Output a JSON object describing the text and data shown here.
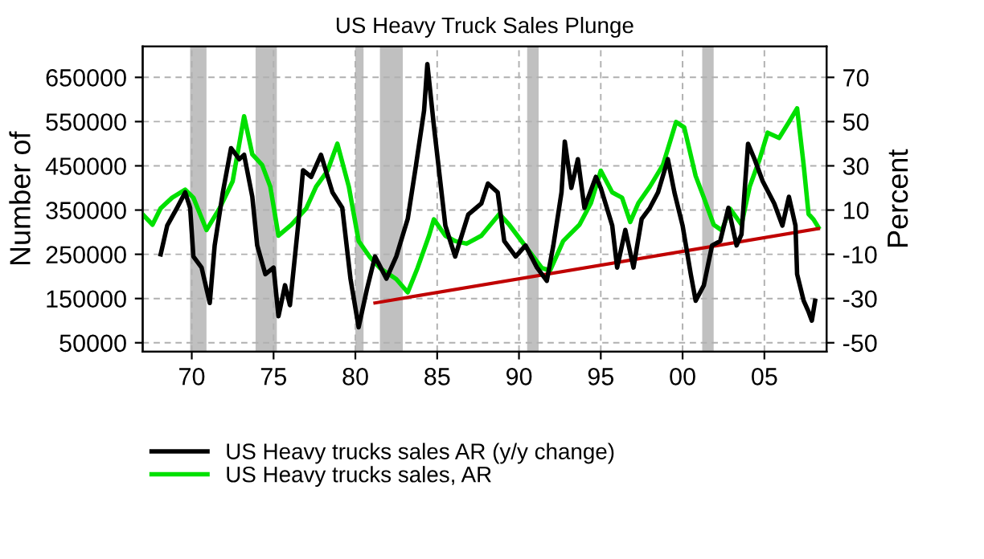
{
  "chart_data": {
    "type": "line",
    "title": "US Heavy Truck Sales Plunge",
    "ylabel": "Number of",
    "y2label": "Percent",
    "xlim": [
      1967,
      2008.8
    ],
    "xticks": [
      {
        "value": 1970,
        "label": "70"
      },
      {
        "value": 1975,
        "label": "75"
      },
      {
        "value": 1980,
        "label": "80"
      },
      {
        "value": 1985,
        "label": "85"
      },
      {
        "value": 1990,
        "label": "90"
      },
      {
        "value": 1995,
        "label": "95"
      },
      {
        "value": 2000,
        "label": "00"
      },
      {
        "value": 2005,
        "label": "05"
      }
    ],
    "ylim": [
      30000,
      720000
    ],
    "yticks": [
      50000,
      150000,
      250000,
      350000,
      450000,
      550000,
      650000
    ],
    "y2lim": [
      -54,
      84
    ],
    "y2ticks": [
      -50,
      -30,
      -10,
      10,
      30,
      50,
      70
    ],
    "grid": true,
    "legend": "bottom left",
    "bands": [
      {
        "axis": "x",
        "from": 1969.9,
        "to": 1970.9,
        "color": "#c0c0c0"
      },
      {
        "axis": "x",
        "from": 1973.9,
        "to": 1975.2,
        "color": "#c0c0c0"
      },
      {
        "axis": "x",
        "from": 1980.0,
        "to": 1980.5,
        "color": "#c0c0c0"
      },
      {
        "axis": "x",
        "from": 1981.5,
        "to": 1982.9,
        "color": "#c0c0c0"
      },
      {
        "axis": "x",
        "from": 1990.5,
        "to": 1991.2,
        "color": "#c0c0c0"
      },
      {
        "axis": "x",
        "from": 2001.2,
        "to": 2001.9,
        "color": "#c0c0c0"
      }
    ],
    "series": [
      {
        "name": "US Heavy trucks sales AR (y/y change)",
        "color": "#000000",
        "axis": "y2",
        "x": [
          1968.1,
          1968.5,
          1969.1,
          1969.6,
          1969.9,
          1970.1,
          1970.6,
          1971.1,
          1971.4,
          1971.9,
          1972.4,
          1972.9,
          1973.2,
          1973.7,
          1974.0,
          1974.5,
          1975.0,
          1975.3,
          1975.7,
          1976.0,
          1976.5,
          1976.8,
          1977.3,
          1977.9,
          1978.6,
          1979.2,
          1979.7,
          1980.2,
          1980.7,
          1981.2,
          1981.9,
          1982.5,
          1983.2,
          1983.7,
          1984.2,
          1984.4,
          1984.8,
          1985.5,
          1986.1,
          1986.9,
          1987.7,
          1988.1,
          1988.7,
          1989.1,
          1989.8,
          1990.4,
          1991.1,
          1991.7,
          1992.1,
          1992.6,
          1992.8,
          1993.2,
          1993.6,
          1994.0,
          1994.7,
          1995.0,
          1995.7,
          1996.0,
          1996.5,
          1997.0,
          1997.5,
          1998.0,
          1998.5,
          1999.1,
          1999.5,
          2000.0,
          2000.5,
          2000.8,
          2001.3,
          2001.8,
          2002.3,
          2002.8,
          2003.3,
          2003.6,
          2004.0,
          2004.4,
          2004.9,
          2005.6,
          2006.1,
          2006.5,
          2006.9,
          2007.0,
          2007.4,
          2007.7,
          2007.9,
          2008.1
        ],
        "values": [
          -10,
          3,
          11,
          18,
          11,
          -11,
          -16,
          -32,
          -6,
          18,
          38,
          33,
          35,
          16,
          -6,
          -19,
          -16,
          -38,
          -24,
          -33,
          3,
          28,
          25,
          35,
          18,
          11,
          -21,
          -43,
          -26,
          -11,
          -21,
          -11,
          6,
          30,
          55,
          76,
          48,
          3,
          -11,
          8,
          13,
          22,
          18,
          -4,
          -11,
          -6,
          -16,
          -22,
          -6,
          18,
          41,
          20,
          33,
          11,
          25,
          20,
          3,
          -16,
          1,
          -16,
          6,
          11,
          18,
          33,
          18,
          3,
          -19,
          -31,
          -24,
          -6,
          -4,
          11,
          -6,
          -1,
          40,
          33,
          23,
          13,
          3,
          16,
          3,
          -19,
          -31,
          -36,
          -40,
          -31
        ]
      },
      {
        "name": "US Heavy trucks sales, AR",
        "color": "#00e000",
        "x": [
          1967.0,
          1967.6,
          1968.1,
          1968.8,
          1969.6,
          1970.1,
          1970.9,
          1971.7,
          1972.5,
          1973.2,
          1973.7,
          1974.3,
          1974.8,
          1975.3,
          1976.1,
          1977.0,
          1977.6,
          1978.3,
          1978.9,
          1979.6,
          1980.2,
          1980.9,
          1981.5,
          1982.5,
          1983.2,
          1983.8,
          1984.5,
          1984.8,
          1985.5,
          1986.1,
          1986.8,
          1987.7,
          1988.8,
          1989.4,
          1990.4,
          1991.4,
          1991.9,
          1992.7,
          1993.7,
          1994.4,
          1995.0,
          1995.7,
          1996.3,
          1996.8,
          1997.3,
          1998.0,
          1998.8,
          1999.6,
          2000.1,
          2000.8,
          2001.3,
          2001.9,
          2002.4,
          2002.9,
          2003.6,
          2004.1,
          2004.7,
          2005.2,
          2005.9,
          2006.5,
          2007.0,
          2007.4,
          2007.7,
          2008.0,
          2008.3
        ],
        "values": [
          340000,
          317000,
          354000,
          378000,
          396000,
          378000,
          305000,
          354000,
          415000,
          562000,
          476000,
          452000,
          403000,
          292000,
          317000,
          354000,
          403000,
          439000,
          500000,
          403000,
          280000,
          243000,
          219000,
          194000,
          164000,
          219000,
          292000,
          329000,
          292000,
          280000,
          274000,
          292000,
          341000,
          317000,
          268000,
          219000,
          213000,
          280000,
          317000,
          366000,
          439000,
          390000,
          378000,
          323000,
          366000,
          403000,
          452000,
          549000,
          537000,
          427000,
          378000,
          317000,
          304000,
          353000,
          317000,
          403000,
          464000,
          525000,
          513000,
          549000,
          580000,
          452000,
          341000,
          329000,
          311000
        ]
      },
      {
        "color": "#c00000",
        "x": [
          1981.2,
          2008.3
        ],
        "values": [
          140000,
          308000
        ]
      }
    ]
  }
}
